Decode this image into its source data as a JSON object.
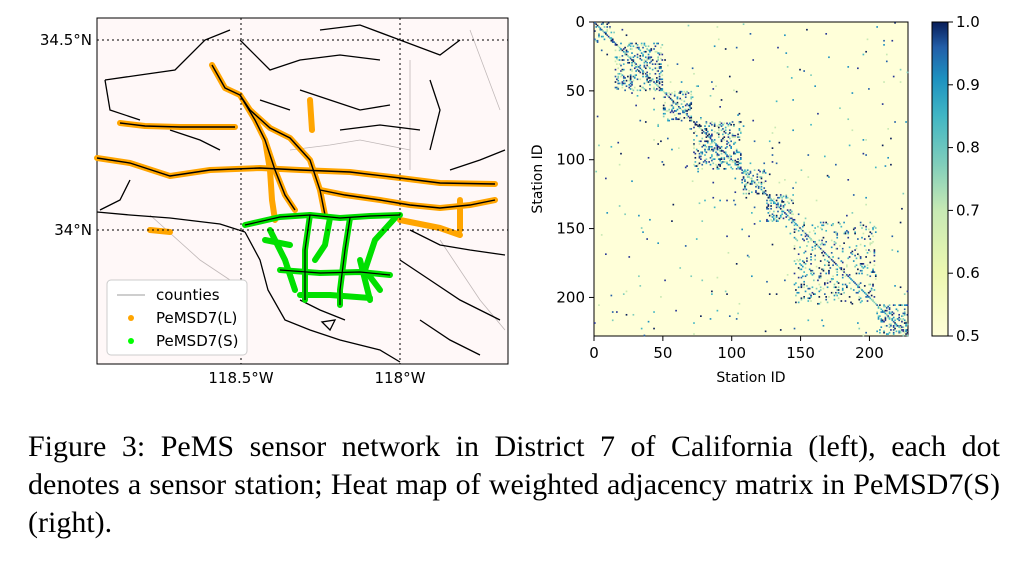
{
  "figure": {
    "caption": "Figure 3:  PeMS sensor network in District 7 of California (left), each dot denotes a sensor station; Heat map of weighted adjacency matrix in PeMSD7(S) (right)."
  },
  "map": {
    "lat_ticks": [
      "34.5°N",
      "34°N"
    ],
    "lon_ticks": [
      "118.5°W",
      "118°W"
    ],
    "legend": [
      {
        "label": "counties",
        "color": "#b0b0b0",
        "kind": "line"
      },
      {
        "label": "PeMSD7(L)",
        "color": "#ffa500",
        "kind": "dot"
      },
      {
        "label": "PeMSD7(S)",
        "color": "#00ff00",
        "kind": "dot"
      }
    ],
    "colors": {
      "background": "#fff8f8",
      "roads": "#000000",
      "large": "#ffa500",
      "small": "#00ff00"
    }
  },
  "chart_data": {
    "type": "heatmap",
    "xlabel": "Station ID",
    "ylabel": "Station ID",
    "xticks": [
      0,
      50,
      100,
      150,
      200
    ],
    "yticks": [
      0,
      50,
      100,
      150,
      200
    ],
    "xlim": [
      0,
      228
    ],
    "ylim": [
      0,
      228
    ],
    "colorbar": {
      "min": 0.5,
      "max": 1.0,
      "ticks": [
        "0.5",
        "0.6",
        "0.7",
        "0.8",
        "0.9",
        "1.0"
      ],
      "colormap": "YlGnBu"
    },
    "blocks": [
      {
        "start": 0,
        "end": 15
      },
      {
        "start": 15,
        "end": 50
      },
      {
        "start": 50,
        "end": 72
      },
      {
        "start": 72,
        "end": 107
      },
      {
        "start": 107,
        "end": 125
      },
      {
        "start": 125,
        "end": 145
      },
      {
        "start": 145,
        "end": 205
      },
      {
        "start": 205,
        "end": 228
      }
    ]
  }
}
